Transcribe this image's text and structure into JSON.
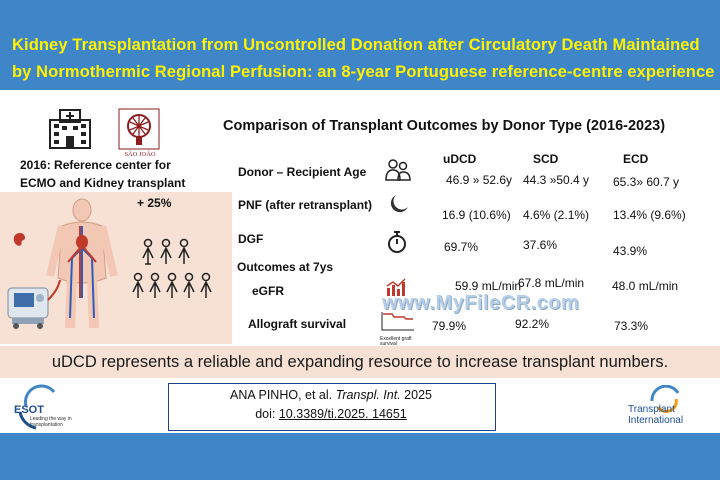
{
  "title_line1": "Kidney Transplantation from Uncontrolled Donation after Circulatory Death Maintained",
  "title_line2": "by Normothermic Regional Perfusion: an 8-year Portuguese reference-centre experience",
  "logo_sj_text": "SÃO JOÃO",
  "reference_line1": "2016: Reference center for",
  "reference_line2": "ECMO and Kidney transplant",
  "increase": "+ 25%",
  "comparison_title": "Comparison of Transplant Outcomes by Donor Type (2016-2023)",
  "columns": [
    "uDCD",
    "SCD",
    "ECD"
  ],
  "rows": [
    {
      "label": "Donor – Recipient Age",
      "values": [
        "46.9 » 52.6y",
        "44.3 »50.4 y",
        "65.3» 60.7 y"
      ]
    },
    {
      "label": "PNF (after retransplant)",
      "values": [
        "16.9 (10.6%)",
        "4.6% (2.1%)",
        "13.4% (9.6%)"
      ]
    },
    {
      "label": "DGF",
      "values": [
        "69.7%",
        "37.6%",
        "43.9%"
      ]
    },
    {
      "label": "eGFR",
      "values": [
        "59.9 mL/min",
        "67.8 mL/min",
        "48.0 mL/min"
      ]
    },
    {
      "label": "Allograft survival",
      "values": [
        "79.9%",
        "92.2%",
        "73.3%"
      ]
    }
  ],
  "outcomes_label": "Outcomes at 7ys",
  "graft_icon_caption": "Excellent graft survival",
  "conclusion": "uDCD represents a reliable and expanding resource to increase transplant numbers.",
  "citation_authors": "ANA PINHO, et al. ",
  "citation_journal": "Transpl. Int.",
  "citation_year": " 2025",
  "citation_doi_prefix": "doi: ",
  "citation_doi": "10.3389/ti.2025. 14651",
  "esot_name": "ESOT",
  "esot_tagline": "Leading the way in transplantation",
  "ti_line1": "Transplant",
  "ti_line2": "International",
  "watermark": "www.MyFileCR.com",
  "colors": {
    "header_bg": "#3f86c9",
    "title": "#fff200",
    "accent_bg": "#f6e1d4"
  }
}
